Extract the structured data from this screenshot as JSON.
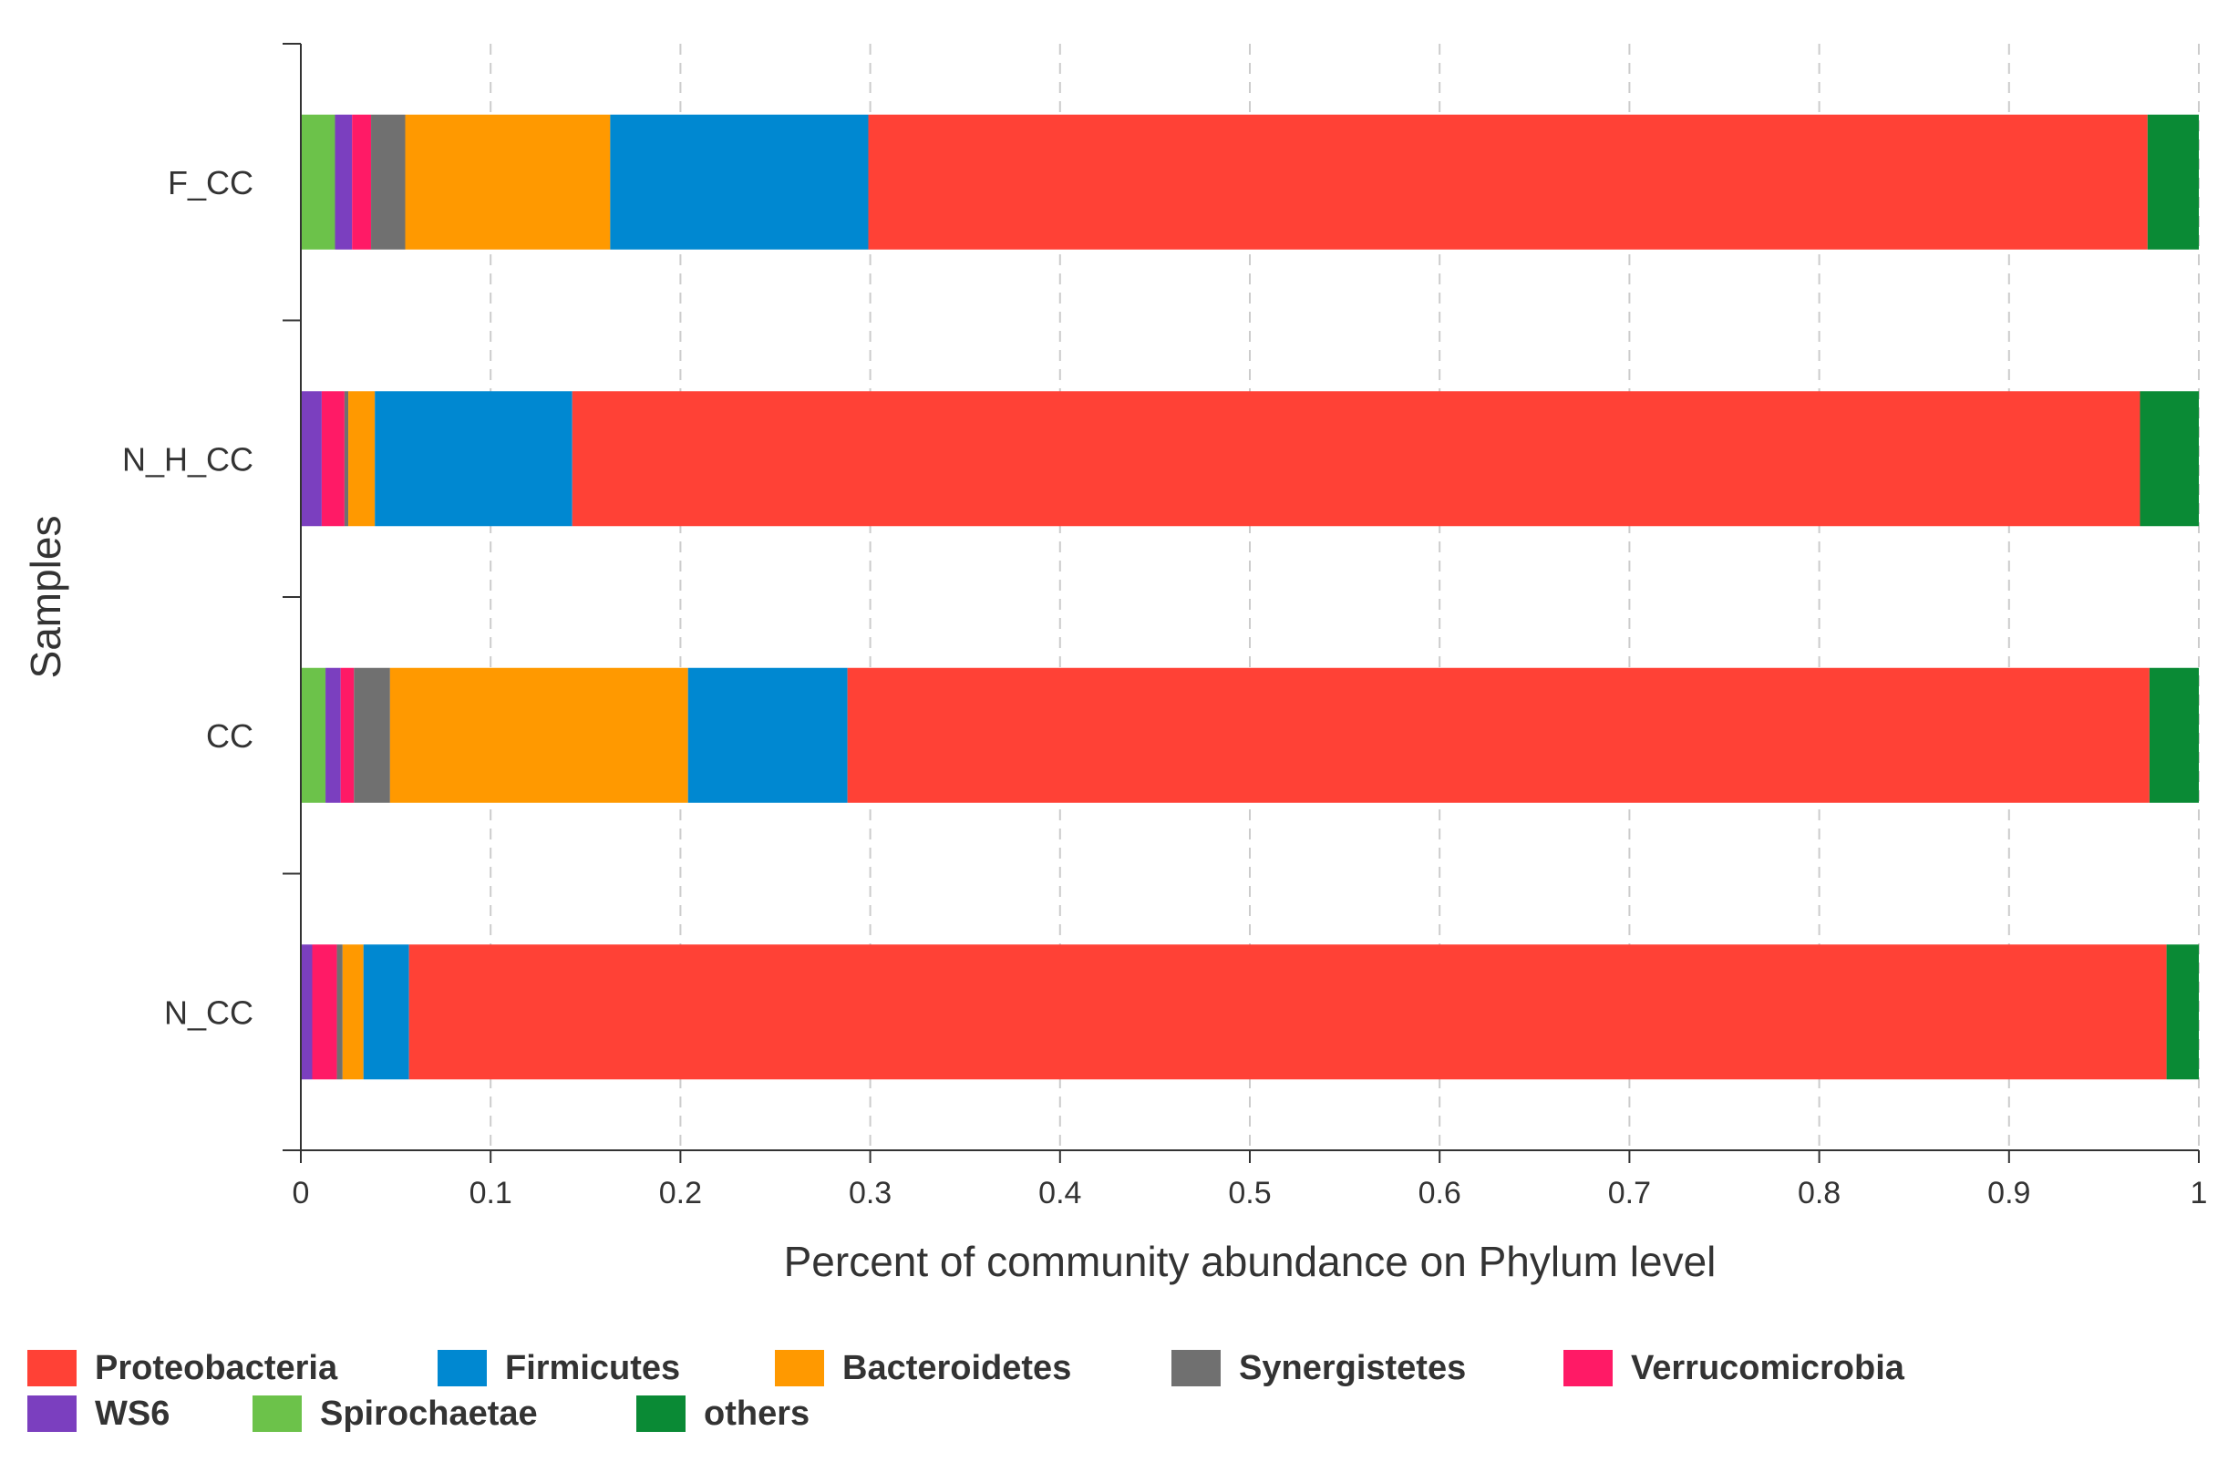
{
  "chart_data": {
    "type": "bar",
    "orientation": "horizontal",
    "stacked": true,
    "title": "",
    "xlabel": "Percent of community abundance on Phylum level",
    "ylabel": "Samples",
    "xlim": [
      0,
      1
    ],
    "x_ticks": [
      "0",
      "0.1",
      "0.2",
      "0.3",
      "0.4",
      "0.5",
      "0.6",
      "0.7",
      "0.8",
      "0.9",
      "1"
    ],
    "categories": [
      "F_CC",
      "N_H_CC",
      "CC",
      "N_CC"
    ],
    "grid": "vertical dashed",
    "legend_position": "bottom",
    "series": [
      {
        "name": "Spirochaetae",
        "color": "#6cc24a",
        "values": [
          0.018,
          0.0,
          0.013,
          0.0
        ]
      },
      {
        "name": "WS6",
        "color": "#7b3fbf",
        "values": [
          0.009,
          0.011,
          0.008,
          0.006
        ]
      },
      {
        "name": "Verrucomicrobia",
        "color": "#ff1a66",
        "values": [
          0.01,
          0.012,
          0.007,
          0.013
        ]
      },
      {
        "name": "Synergistetes",
        "color": "#707070",
        "values": [
          0.018,
          0.002,
          0.019,
          0.003
        ]
      },
      {
        "name": "Bacteroidetes",
        "color": "#ff9900",
        "values": [
          0.108,
          0.014,
          0.157,
          0.011
        ]
      },
      {
        "name": "Firmicutes",
        "color": "#0088d1",
        "values": [
          0.136,
          0.104,
          0.084,
          0.024
        ]
      },
      {
        "name": "Proteobacteria",
        "color": "#ff4136",
        "values": [
          0.674,
          0.826,
          0.686,
          0.926
        ]
      },
      {
        "name": "others",
        "color": "#0a8a35",
        "values": [
          0.027,
          0.031,
          0.026,
          0.017
        ]
      }
    ],
    "legend_order": [
      "Proteobacteria",
      "Firmicutes",
      "Bacteroidetes",
      "Synergistetes",
      "Verrucomicrobia",
      "WS6",
      "Spirochaetae",
      "others"
    ]
  }
}
